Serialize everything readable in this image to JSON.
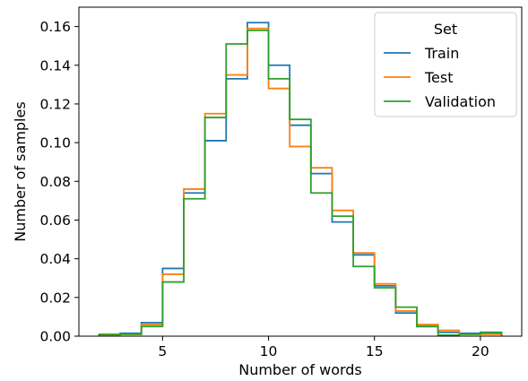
{
  "chart_data": {
    "type": "histogram-step",
    "xlabel": "Number of words",
    "ylabel": "Number of samples",
    "xlim": [
      1.05,
      21.95
    ],
    "ylim": [
      0,
      0.17
    ],
    "xticks": [
      5,
      10,
      15,
      20
    ],
    "yticks": [
      0.0,
      0.02,
      0.04,
      0.06,
      0.08,
      0.1,
      0.12,
      0.14,
      0.16
    ],
    "ytick_labels": [
      "0.00",
      "0.02",
      "0.04",
      "0.06",
      "0.08",
      "0.10",
      "0.12",
      "0.14",
      "0.16"
    ],
    "grid": false,
    "legend": {
      "title": "Set",
      "placement": "top-right"
    },
    "bin_edges": [
      2,
      3,
      4,
      5,
      6,
      7,
      8,
      9,
      10,
      11,
      12,
      13,
      14,
      15,
      16,
      17,
      18,
      19,
      20,
      21
    ],
    "series": [
      {
        "name": "Train",
        "color": "#1f77b4",
        "values": [
          0.0005,
          0.0015,
          0.007,
          0.035,
          0.074,
          0.101,
          0.133,
          0.162,
          0.14,
          0.109,
          0.084,
          0.059,
          0.042,
          0.026,
          0.012,
          0.005,
          0.002,
          0.0015,
          0.0015
        ]
      },
      {
        "name": "Test",
        "color": "#ff7f0e",
        "values": [
          0.0005,
          0.001,
          0.006,
          0.032,
          0.076,
          0.115,
          0.135,
          0.159,
          0.128,
          0.098,
          0.087,
          0.065,
          0.043,
          0.027,
          0.013,
          0.006,
          0.003,
          0.001,
          0.001
        ]
      },
      {
        "name": "Validation",
        "color": "#2ca02c",
        "values": [
          0.001,
          0.001,
          0.005,
          0.028,
          0.071,
          0.113,
          0.151,
          0.158,
          0.133,
          0.112,
          0.074,
          0.062,
          0.036,
          0.025,
          0.015,
          0.005,
          0.0005,
          0.001,
          0.002
        ]
      }
    ]
  }
}
